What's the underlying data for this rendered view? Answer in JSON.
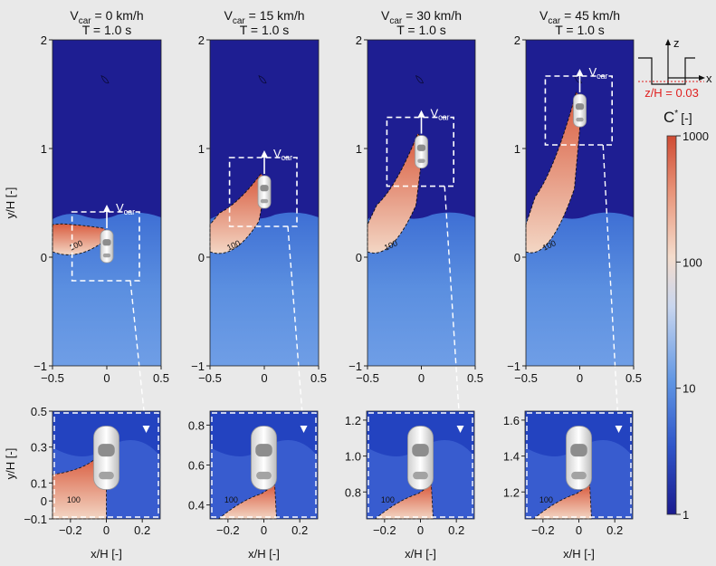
{
  "chart_data": {
    "type": "heatmap",
    "quantity_symbol": "C",
    "quantity_superscript": "*",
    "quantity_unit": "[-]",
    "color_scale": "log",
    "colorbar_ticks": [
      "1000",
      "100",
      "10",
      "1"
    ],
    "colorbar_range": [
      1,
      1000
    ],
    "colors": {
      "low": "#1b1b8f",
      "mid": "#f3dccd",
      "high": "#cf4b33",
      "contour": "#111111",
      "box": "#ffffff"
    },
    "contour_label": "100",
    "velocity_label_main": "V",
    "velocity_label_sub": "car",
    "ylabel": "y/H [-]",
    "xlabel": "x/H [-]",
    "top_x_ticks": [
      "−0.5",
      "0",
      "0.5"
    ],
    "top_y_ticks": [
      "2",
      "1",
      "0",
      "−1"
    ],
    "bottom_x_ticks": [
      "−0.2",
      "0",
      "0.2"
    ],
    "inset": {
      "z_axis": "z",
      "x_axis": "x",
      "label": "z/H = 0.03"
    },
    "panels": [
      {
        "speed_label": "V",
        "speed_sub": "car",
        "speed_value": " = 0 km/h",
        "time_label": "T = 1.0 s",
        "car_y": 0.1,
        "zoom_y_ticks": [
          "0.5",
          "0.3",
          "0.1",
          "0",
          "−0.1"
        ]
      },
      {
        "speed_label": "V",
        "speed_sub": "car",
        "speed_value": " = 15 km/h",
        "time_label": "T = 1.0 s",
        "car_y": 0.6,
        "zoom_y_ticks": [
          "0.8",
          "0.6",
          "0.4"
        ]
      },
      {
        "speed_label": "V",
        "speed_sub": "car",
        "speed_value": " = 30 km/h",
        "time_label": "T = 1.0 s",
        "car_y": 0.97,
        "zoom_y_ticks": [
          "1.2",
          "1.0",
          "0.8"
        ]
      },
      {
        "speed_label": "V",
        "speed_sub": "car",
        "speed_value": " = 45 km/h",
        "time_label": "T = 1.0 s",
        "car_y": 1.35,
        "zoom_y_ticks": [
          "1.6",
          "1.4",
          "1.2"
        ]
      }
    ]
  }
}
